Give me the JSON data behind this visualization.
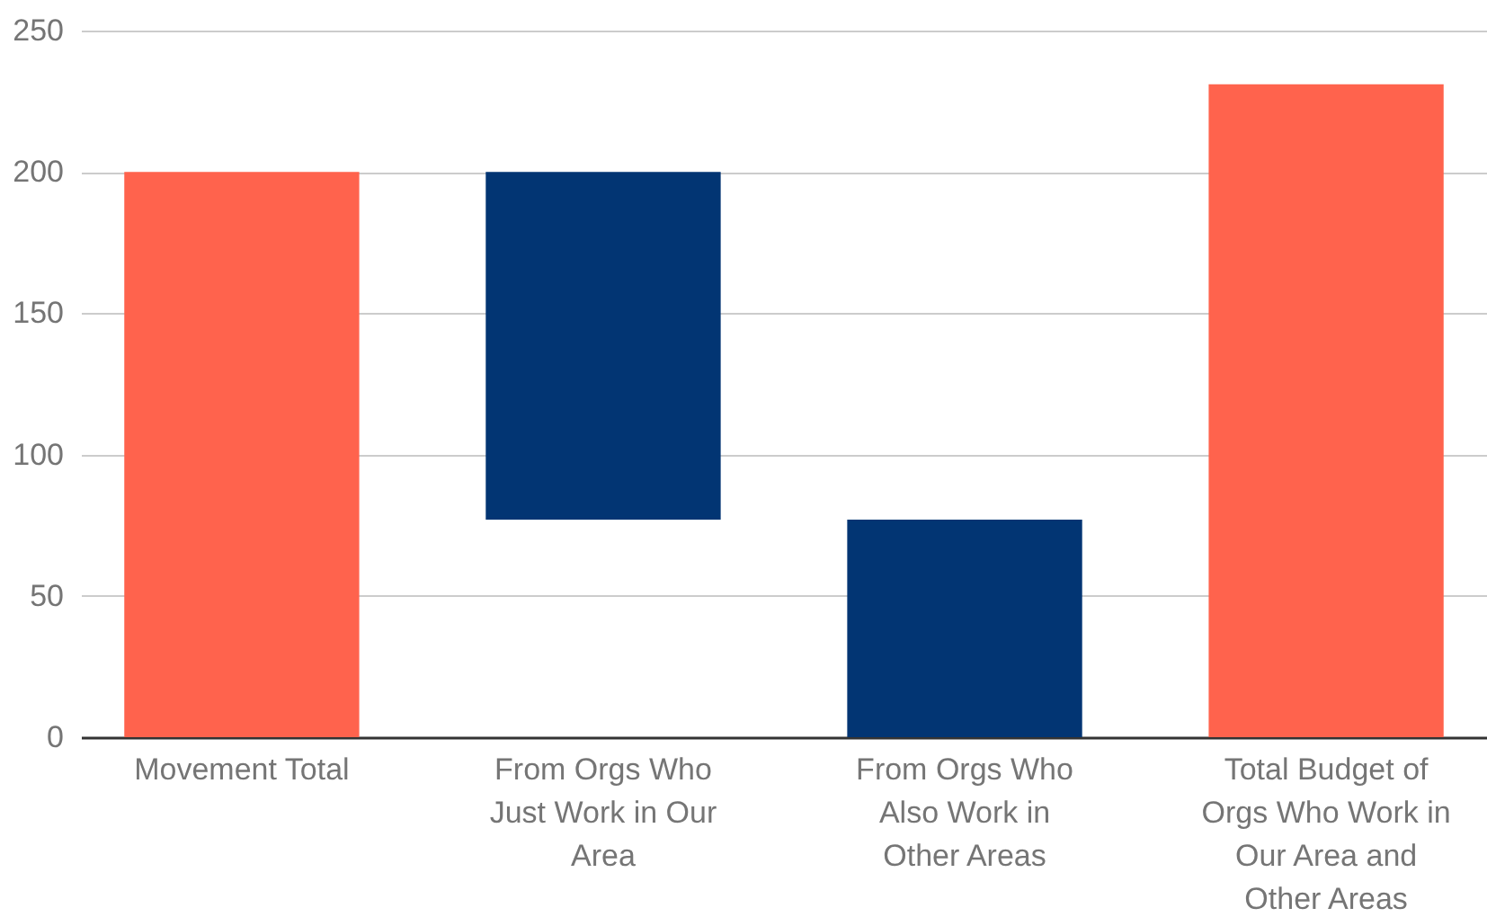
{
  "chart_data": {
    "type": "bar",
    "categories": [
      "Movement Total",
      "From Orgs Who Just Work in Our Area",
      "From Orgs Who Also Work in Other Areas",
      "Total Budget of Orgs Who Work in Our Area and Other Areas"
    ],
    "values": [
      200,
      -123,
      -77,
      231
    ],
    "base": [
      0,
      200,
      77,
      0
    ],
    "colors": [
      "#ff634d",
      "#023573",
      "#023573",
      "#ff634d"
    ],
    "ylim": [
      0,
      250
    ],
    "yticks": [
      0,
      50,
      100,
      150,
      200,
      250
    ],
    "grid": "y"
  }
}
